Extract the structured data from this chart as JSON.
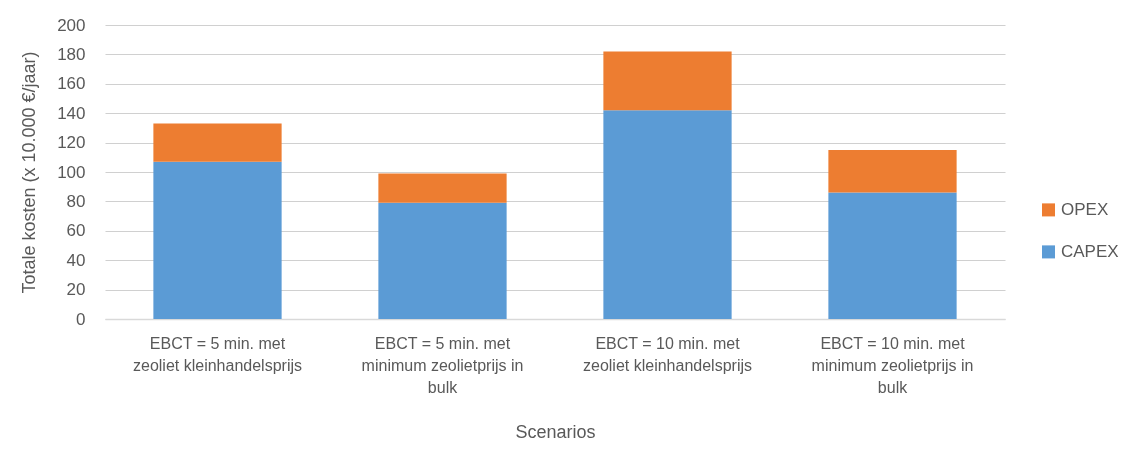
{
  "chart_data": {
    "type": "bar",
    "stacked": true,
    "categories": [
      "EBCT = 5 min. met zeoliet kleinhandelsprijs",
      "EBCT = 5 min. met minimum zeolietprijs in bulk",
      "EBCT = 10 min. met zeoliet kleinhandelsprijs",
      "EBCT = 10 min. met minimum zeolietprijs in bulk"
    ],
    "series": [
      {
        "name": "CAPEX",
        "color": "#5b9bd5",
        "values": [
          107,
          79,
          142,
          86
        ]
      },
      {
        "name": "OPEX",
        "color": "#ed7d31",
        "values": [
          26,
          20,
          40,
          29
        ]
      }
    ],
    "xlabel": "Scenarios",
    "ylabel": "Totale kosten (x 10.000 €/jaar)",
    "ylim": [
      0,
      200
    ],
    "yticks": [
      0,
      20,
      40,
      60,
      80,
      100,
      120,
      140,
      160,
      180,
      200
    ],
    "grid": "y",
    "legend": "right"
  }
}
